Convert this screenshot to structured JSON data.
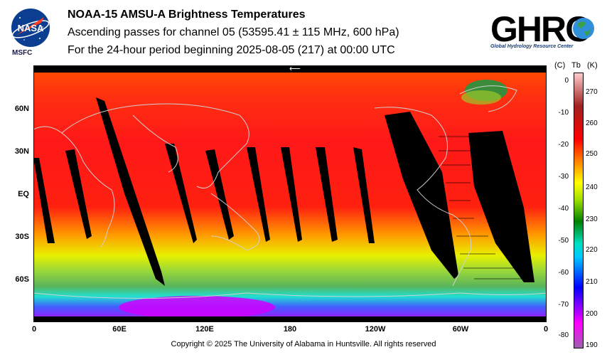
{
  "header": {
    "title": "NOAA-15 AMSU-A Brightness Temperatures",
    "subtitle": "Ascending passes for channel 05 (53595.41 ± 115 MHz, 600 hPa)",
    "period": "For the 24-hour period beginning 2025-08-05 (217) at 00:00 UTC"
  },
  "logos": {
    "nasa_wordmark": "NASA",
    "nasa_label": "MSFC",
    "ghrc_wordmark": "GHRC",
    "ghrc_subtitle": "Global Hydrology Resource Center"
  },
  "map": {
    "lat_labels": [
      "60N",
      "30N",
      "EQ",
      "30S",
      "60S"
    ],
    "lon_labels": [
      "0",
      "60E",
      "120E",
      "180",
      "120W",
      "60W",
      "0"
    ]
  },
  "colorbar": {
    "header_c": "(C)",
    "header_tb": "Tb",
    "header_k": "(K)",
    "celsius_ticks": [
      "0",
      "-10",
      "-20",
      "-30",
      "-40",
      "-50",
      "-60",
      "-70",
      "-80"
    ],
    "kelvin_ticks": [
      "270",
      "260",
      "250",
      "240",
      "230",
      "220",
      "210",
      "200",
      "190"
    ],
    "colors": [
      "#a060b0",
      "#ff00ff",
      "#0000ff",
      "#00c0ff",
      "#00e0c0",
      "#008000",
      "#a0e000",
      "#ffff00",
      "#ff8000",
      "#ff0000",
      "#a02020",
      "#ffcccc"
    ]
  },
  "footer": {
    "copyright": "Copyright © 2025 The University of Alabama in Huntsville.  All rights reserved"
  }
}
